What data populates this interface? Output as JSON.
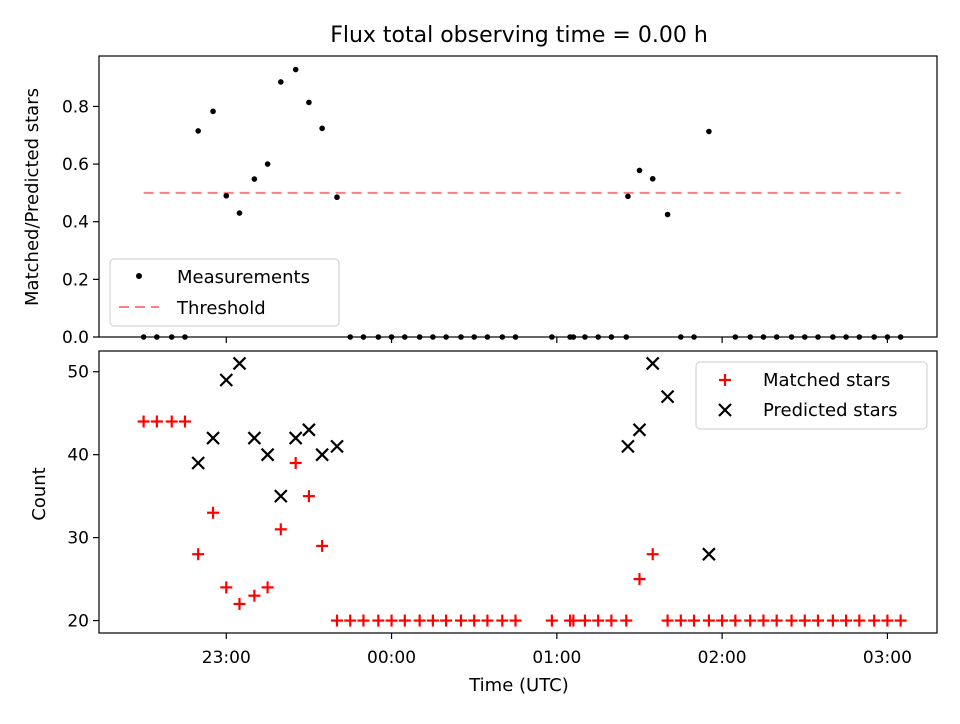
{
  "figure_title": "Flux total observing time = 0.00 h",
  "x_axis_label": "Time (UTC)",
  "x_ticks": [
    "23:00",
    "00:00",
    "01:00",
    "02:00",
    "03:00"
  ],
  "top_legend": {
    "measurements": "Measurements",
    "threshold": "Threshold"
  },
  "bottom_legend": {
    "matched": "Matched stars",
    "predicted": "Predicted stars"
  },
  "colors": {
    "matched": "#ff0000",
    "predicted": "#000000",
    "threshold": "#ff7f7f",
    "measurements": "#000000"
  },
  "chart_data": [
    {
      "type": "scatter",
      "title": "Flux total observing time = 0.00 h",
      "xlabel": "",
      "ylabel": "Matched/Predicted stars",
      "x_unit": "hours (UTC, 24=00:00)",
      "xlim": [
        22.23,
        27.3
      ],
      "ylim": [
        0.0,
        0.975
      ],
      "yticks": [
        "0.0",
        "0.2",
        "0.4",
        "0.6",
        "0.8"
      ],
      "series": [
        {
          "name": "Measurements",
          "x": [
            22.5,
            22.58,
            22.67,
            22.75,
            22.83,
            22.92,
            23.0,
            23.08,
            23.17,
            23.25,
            23.33,
            23.42,
            23.5,
            23.58,
            23.67,
            23.75,
            23.83,
            23.92,
            24.0,
            24.08,
            24.17,
            24.25,
            24.33,
            24.42,
            24.5,
            24.58,
            24.67,
            24.75,
            24.97,
            25.08,
            25.1,
            25.17,
            25.25,
            25.33,
            25.42,
            25.43,
            25.5,
            25.58,
            25.67,
            25.75,
            25.83,
            25.92,
            26.08,
            26.17,
            26.25,
            26.33,
            26.42,
            26.5,
            26.58,
            26.67,
            26.75,
            26.83,
            26.92,
            27.0,
            27.08
          ],
          "y": [
            0,
            0,
            0,
            0,
            0.715,
            0.783,
            0.49,
            0.43,
            0.548,
            0.6,
            0.885,
            0.928,
            0.814,
            0.724,
            0.485,
            0,
            0,
            0,
            0,
            0,
            0,
            0,
            0,
            0,
            0,
            0,
            0,
            0,
            0,
            0,
            0,
            0,
            0,
            0,
            0,
            0.488,
            0.578,
            0.549,
            0.425,
            0,
            0,
            0.713,
            0,
            0,
            0,
            0,
            0,
            0,
            0,
            0,
            0,
            0,
            0,
            0,
            0
          ]
        },
        {
          "name": "Threshold",
          "x": [
            22.5,
            27.08
          ],
          "y": [
            0.5,
            0.5
          ]
        }
      ]
    },
    {
      "type": "scatter",
      "xlabel": "Time (UTC)",
      "ylabel": "Count",
      "x_unit": "hours (UTC, 24=00:00)",
      "xlim": [
        22.23,
        27.3
      ],
      "ylim": [
        18.5,
        52.5
      ],
      "yticks": [
        "20",
        "30",
        "40",
        "50"
      ],
      "xticks": [
        "23:00",
        "00:00",
        "01:00",
        "02:00",
        "03:00"
      ],
      "series": [
        {
          "name": "Matched stars",
          "x": [
            22.5,
            22.58,
            22.67,
            22.75,
            22.83,
            22.92,
            23.0,
            23.08,
            23.17,
            23.25,
            23.33,
            23.42,
            23.5,
            23.58,
            23.67,
            23.75,
            23.83,
            23.92,
            24.0,
            24.08,
            24.17,
            24.25,
            24.33,
            24.42,
            24.5,
            24.58,
            24.67,
            24.75,
            24.97,
            25.08,
            25.1,
            25.17,
            25.25,
            25.33,
            25.42,
            25.5,
            25.58,
            25.67,
            25.75,
            25.83,
            25.92,
            26.0,
            26.08,
            26.17,
            26.25,
            26.33,
            26.42,
            26.5,
            26.58,
            26.67,
            26.75,
            26.83,
            26.92,
            27.0,
            27.08
          ],
          "y": [
            44,
            44,
            44,
            44,
            28,
            33,
            24,
            22,
            23,
            24,
            31,
            39,
            35,
            29,
            20,
            20,
            20,
            20,
            20,
            20,
            20,
            20,
            20,
            20,
            20,
            20,
            20,
            20,
            20,
            20,
            20,
            20,
            20,
            20,
            20,
            25,
            28,
            20,
            20,
            20,
            20,
            20,
            20,
            20,
            20,
            20,
            20,
            20,
            20,
            20,
            20,
            20,
            20,
            20,
            20
          ]
        },
        {
          "name": "Predicted stars",
          "x": [
            22.83,
            22.92,
            23.0,
            23.08,
            23.17,
            23.25,
            23.33,
            23.42,
            23.5,
            23.58,
            23.67,
            25.43,
            25.5,
            25.58,
            25.67,
            25.92
          ],
          "y": [
            39,
            42,
            49,
            51,
            42,
            40,
            35,
            42,
            43,
            40,
            41,
            41,
            43,
            51,
            47,
            28
          ]
        }
      ]
    }
  ]
}
